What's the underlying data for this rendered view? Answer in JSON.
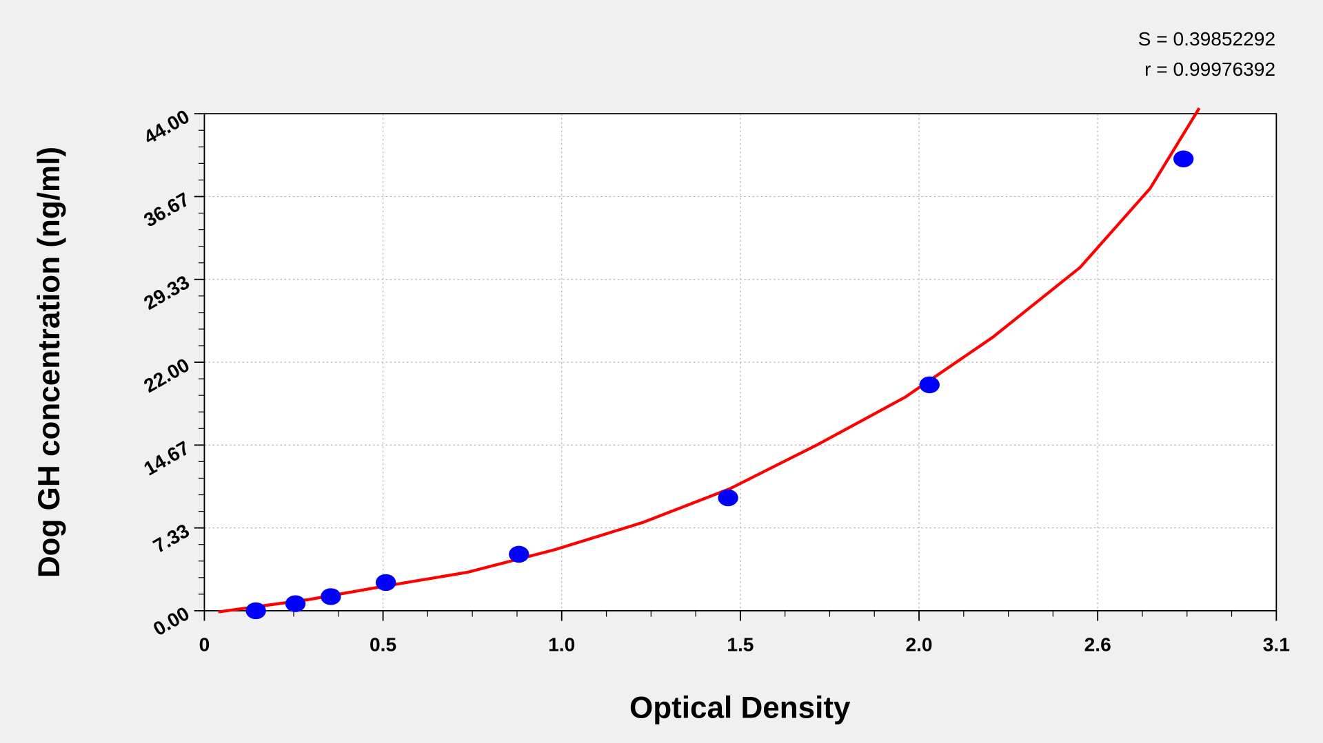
{
  "chart_data": {
    "type": "scatter",
    "annotations": [
      "S = 0.39852292",
      "r = 0.99976392"
    ],
    "x_label": "Optical Density",
    "y_label": "Dog GH concentration (ng/ml)",
    "xlim": [
      0,
      3.06
    ],
    "xticks": [
      0,
      {
        "value": 0.51,
        "label": "0.5"
      },
      {
        "value": 1.02,
        "label": "1.0"
      },
      {
        "value": 1.53,
        "label": "1.5"
      },
      {
        "value": 2.04,
        "label": "2.0"
      },
      {
        "value": 2.55,
        "label": "2.6"
      },
      {
        "value": 3.06,
        "label": "3.1"
      }
    ],
    "ylim": [
      0,
      44
    ],
    "yticks": [
      {
        "value": 0,
        "label": "0.00"
      },
      {
        "value": 7.3333,
        "label": "7.33"
      },
      {
        "value": 14.6667,
        "label": "14.67"
      },
      {
        "value": 22,
        "label": "22.00"
      },
      {
        "value": 29.3333,
        "label": "29.33"
      },
      {
        "value": 36.6667,
        "label": "36.67"
      },
      {
        "value": 44,
        "label": "44.00"
      }
    ],
    "grid": true,
    "x": [
      0.147,
      0.26,
      0.361,
      0.518,
      0.898,
      1.495,
      2.07,
      2.795
    ],
    "values": [
      0,
      0.625,
      1.25,
      2.5,
      5,
      10,
      20,
      40
    ],
    "color": "#0000ff",
    "fit": {
      "x": [
        0.04,
        0.3,
        0.5,
        0.75,
        1.0,
        1.25,
        1.5,
        1.75,
        2.0,
        2.25,
        2.5,
        2.7,
        2.84
      ],
      "values": [
        -0.1,
        1.0,
        2.1,
        3.4,
        5.4,
        7.8,
        10.8,
        14.7,
        18.9,
        24.2,
        30.4,
        37.4,
        44.5
      ],
      "color": "#ff0000"
    }
  }
}
